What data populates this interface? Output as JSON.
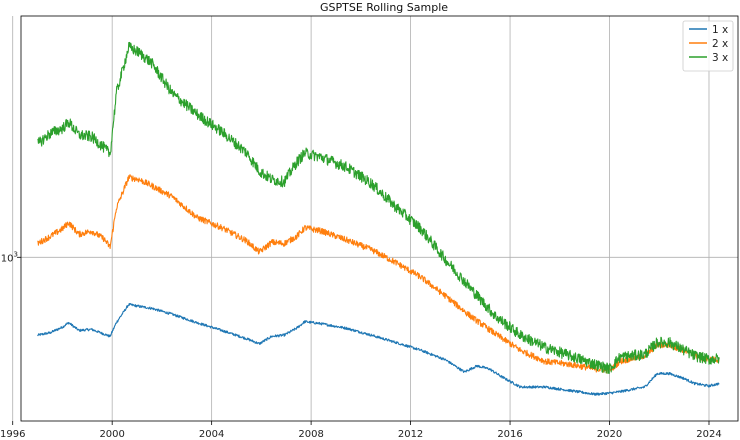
{
  "chart_data": {
    "type": "line",
    "title": "GSPTSE Rolling Sample",
    "xlabel": "",
    "ylabel": "",
    "x_axis": {
      "type": "date",
      "range": [
        "1996-05-01",
        "2025-03-01"
      ],
      "ticks": [
        {
          "value": "1996-01-01",
          "label": "1996"
        },
        {
          "value": "2000-01-01",
          "label": "2000"
        },
        {
          "value": "2004-01-01",
          "label": "2004"
        },
        {
          "value": "2008-01-01",
          "label": "2008"
        },
        {
          "value": "2012-01-01",
          "label": "2012"
        },
        {
          "value": "2016-01-01",
          "label": "2016"
        },
        {
          "value": "2020-01-01",
          "label": "2020"
        },
        {
          "value": "2024-01-01",
          "label": "2024"
        }
      ]
    },
    "y_axis": {
      "scale": "log",
      "range": [
        290,
        6200
      ],
      "ticks": [
        {
          "value": 1000,
          "label": "10^3"
        }
      ]
    },
    "grid": true,
    "legend": {
      "position": "top-right"
    },
    "series": [
      {
        "name": "1 x",
        "color": "#1f77b4",
        "points": [
          [
            "1997-01-01",
            555
          ],
          [
            "1997-07-01",
            565
          ],
          [
            "1998-01-01",
            590
          ],
          [
            "1998-04-01",
            610
          ],
          [
            "1998-09-01",
            575
          ],
          [
            "1999-03-01",
            580
          ],
          [
            "1999-09-01",
            560
          ],
          [
            "1999-12-01",
            550
          ],
          [
            "2000-03-01",
            610
          ],
          [
            "2000-09-01",
            700
          ],
          [
            "2001-02-01",
            690
          ],
          [
            "2001-08-01",
            680
          ],
          [
            "2002-06-01",
            650
          ],
          [
            "2003-06-01",
            610
          ],
          [
            "2004-06-01",
            575
          ],
          [
            "2005-06-01",
            540
          ],
          [
            "2005-12-01",
            520
          ],
          [
            "2006-06-01",
            550
          ],
          [
            "2006-12-01",
            555
          ],
          [
            "2007-06-01",
            585
          ],
          [
            "2007-10-01",
            615
          ],
          [
            "2008-06-01",
            605
          ],
          [
            "2009-06-01",
            585
          ],
          [
            "2010-06-01",
            555
          ],
          [
            "2011-06-01",
            525
          ],
          [
            "2012-06-01",
            495
          ],
          [
            "2013-06-01",
            460
          ],
          [
            "2014-03-01",
            420
          ],
          [
            "2014-09-01",
            440
          ],
          [
            "2015-03-01",
            430
          ],
          [
            "2015-09-01",
            405
          ],
          [
            "2016-06-01",
            375
          ],
          [
            "2017-06-01",
            375
          ],
          [
            "2018-06-01",
            365
          ],
          [
            "2019-06-01",
            355
          ],
          [
            "2020-01-01",
            358
          ],
          [
            "2020-06-01",
            362
          ],
          [
            "2021-06-01",
            375
          ],
          [
            "2021-12-01",
            415
          ],
          [
            "2022-06-01",
            415
          ],
          [
            "2023-01-01",
            400
          ],
          [
            "2023-06-01",
            385
          ],
          [
            "2024-01-01",
            378
          ],
          [
            "2024-06-01",
            385
          ]
        ]
      },
      {
        "name": "2 x",
        "color": "#ff7f0e",
        "points": [
          [
            "1997-01-01",
            1110
          ],
          [
            "1997-07-01",
            1170
          ],
          [
            "1998-01-01",
            1240
          ],
          [
            "1998-04-01",
            1300
          ],
          [
            "1998-09-01",
            1190
          ],
          [
            "1999-03-01",
            1220
          ],
          [
            "1999-09-01",
            1150
          ],
          [
            "1999-12-01",
            1080
          ],
          [
            "2000-03-01",
            1450
          ],
          [
            "2000-09-01",
            1830
          ],
          [
            "2001-02-01",
            1800
          ],
          [
            "2001-08-01",
            1720
          ],
          [
            "2002-06-01",
            1580
          ],
          [
            "2003-06-01",
            1350
          ],
          [
            "2004-06-01",
            1250
          ],
          [
            "2005-06-01",
            1130
          ],
          [
            "2005-12-01",
            1040
          ],
          [
            "2006-06-01",
            1120
          ],
          [
            "2006-12-01",
            1110
          ],
          [
            "2007-06-01",
            1170
          ],
          [
            "2007-10-01",
            1250
          ],
          [
            "2008-06-01",
            1220
          ],
          [
            "2009-06-01",
            1140
          ],
          [
            "2010-06-01",
            1060
          ],
          [
            "2011-06-01",
            960
          ],
          [
            "2012-06-01",
            860
          ],
          [
            "2013-06-01",
            745
          ],
          [
            "2014-06-01",
            640
          ],
          [
            "2015-06-01",
            560
          ],
          [
            "2016-06-01",
            495
          ],
          [
            "2017-06-01",
            455
          ],
          [
            "2018-06-01",
            445
          ],
          [
            "2019-06-01",
            430
          ],
          [
            "2020-01-01",
            425
          ],
          [
            "2020-06-01",
            455
          ],
          [
            "2021-06-01",
            475
          ],
          [
            "2021-12-01",
            515
          ],
          [
            "2022-06-01",
            515
          ],
          [
            "2023-01-01",
            495
          ],
          [
            "2023-06-01",
            475
          ],
          [
            "2024-01-01",
            460
          ],
          [
            "2024-06-01",
            462
          ]
        ]
      },
      {
        "name": "3 x",
        "color": "#2ca02c",
        "points": [
          [
            "1997-01-01",
            2350
          ],
          [
            "1997-07-01",
            2550
          ],
          [
            "1998-01-01",
            2650
          ],
          [
            "1998-04-01",
            2780
          ],
          [
            "1998-09-01",
            2520
          ],
          [
            "1999-03-01",
            2490
          ],
          [
            "1999-09-01",
            2290
          ],
          [
            "1999-12-01",
            2180
          ],
          [
            "2000-03-01",
            3450
          ],
          [
            "2000-09-01",
            4900
          ],
          [
            "2001-02-01",
            4700
          ],
          [
            "2001-08-01",
            4350
          ],
          [
            "2002-06-01",
            3450
          ],
          [
            "2003-06-01",
            2950
          ],
          [
            "2004-06-01",
            2580
          ],
          [
            "2005-06-01",
            2200
          ],
          [
            "2005-12-01",
            1920
          ],
          [
            "2006-06-01",
            1800
          ],
          [
            "2006-12-01",
            1770
          ],
          [
            "2007-06-01",
            2050
          ],
          [
            "2007-10-01",
            2200
          ],
          [
            "2008-06-01",
            2130
          ],
          [
            "2009-06-01",
            1980
          ],
          [
            "2010-06-01",
            1750
          ],
          [
            "2011-06-01",
            1460
          ],
          [
            "2012-06-01",
            1240
          ],
          [
            "2013-06-01",
            980
          ],
          [
            "2014-06-01",
            790
          ],
          [
            "2015-06-01",
            640
          ],
          [
            "2016-06-01",
            555
          ],
          [
            "2017-06-01",
            505
          ],
          [
            "2018-06-01",
            475
          ],
          [
            "2019-06-01",
            445
          ],
          [
            "2020-01-01",
            430
          ],
          [
            "2020-06-01",
            470
          ],
          [
            "2021-06-01",
            480
          ],
          [
            "2021-12-01",
            525
          ],
          [
            "2022-06-01",
            525
          ],
          [
            "2023-01-01",
            495
          ],
          [
            "2023-06-01",
            475
          ],
          [
            "2024-01-01",
            462
          ],
          [
            "2024-06-01",
            465
          ]
        ]
      }
    ]
  }
}
